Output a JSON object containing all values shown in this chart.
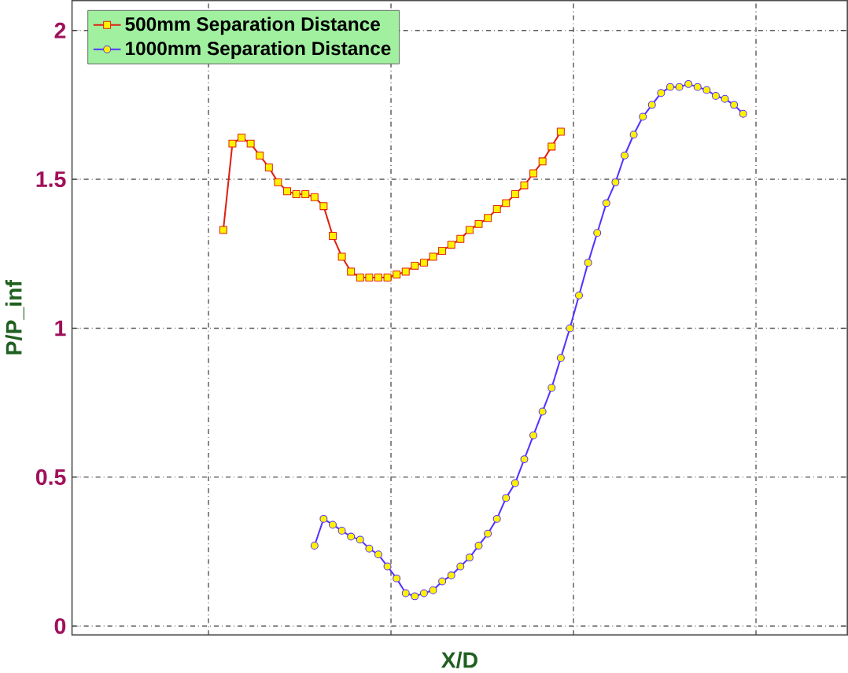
{
  "chart_data": {
    "type": "line",
    "xlabel": "X/D",
    "ylabel": "P/P_inf",
    "categories": [
      null,
      null,
      null,
      null,
      null,
      null,
      null,
      null,
      null,
      null,
      null,
      null,
      null,
      null,
      null,
      null,
      null,
      null,
      null,
      null,
      null,
      null,
      null,
      null,
      null,
      null,
      null,
      null,
      null,
      null,
      null,
      null,
      null,
      null,
      null,
      null,
      null,
      null,
      null,
      null,
      null,
      null,
      null,
      null,
      null,
      null,
      null,
      null,
      null,
      null,
      null,
      null,
      null,
      null,
      null,
      null,
      null,
      null
    ],
    "ylim": [
      -0.03,
      2.1
    ],
    "yticks": [
      0,
      0.5,
      1,
      1.5,
      2
    ],
    "grid": true,
    "legend": "top left",
    "series": [
      {
        "name": "500mm Separation Distance",
        "color": "#e02010",
        "marker": "square",
        "values": [
          1.33,
          1.62,
          1.64,
          1.62,
          1.58,
          1.54,
          1.49,
          1.46,
          1.45,
          1.45,
          1.44,
          1.41,
          1.31,
          1.24,
          1.19,
          1.17,
          1.17,
          1.17,
          1.17,
          1.18,
          1.19,
          1.21,
          1.22,
          1.24,
          1.26,
          1.28,
          1.3,
          1.33,
          1.35,
          1.37,
          1.4,
          1.42,
          1.45,
          1.48,
          1.52,
          1.56,
          1.61,
          1.66,
          null,
          null,
          null,
          null,
          null,
          null,
          null,
          null,
          null,
          null,
          null,
          null,
          null,
          null,
          null,
          null,
          null,
          null,
          null,
          null
        ]
      },
      {
        "name": "1000mm Separation Distance",
        "color": "#5533ff",
        "marker": "circle",
        "values": [
          null,
          null,
          null,
          null,
          null,
          null,
          null,
          null,
          null,
          null,
          0.27,
          0.36,
          0.34,
          0.32,
          0.3,
          0.29,
          0.26,
          0.24,
          0.2,
          0.16,
          0.11,
          0.1,
          0.11,
          0.12,
          0.15,
          0.17,
          0.2,
          0.23,
          0.27,
          0.31,
          0.36,
          0.43,
          0.48,
          0.56,
          0.64,
          0.72,
          0.8,
          0.9,
          1.0,
          1.11,
          1.22,
          1.32,
          1.42,
          1.49,
          1.58,
          1.65,
          1.71,
          1.75,
          1.79,
          1.81,
          1.81,
          1.82,
          1.81,
          1.8,
          1.78,
          1.77,
          1.75,
          1.72
        ]
      }
    ]
  }
}
